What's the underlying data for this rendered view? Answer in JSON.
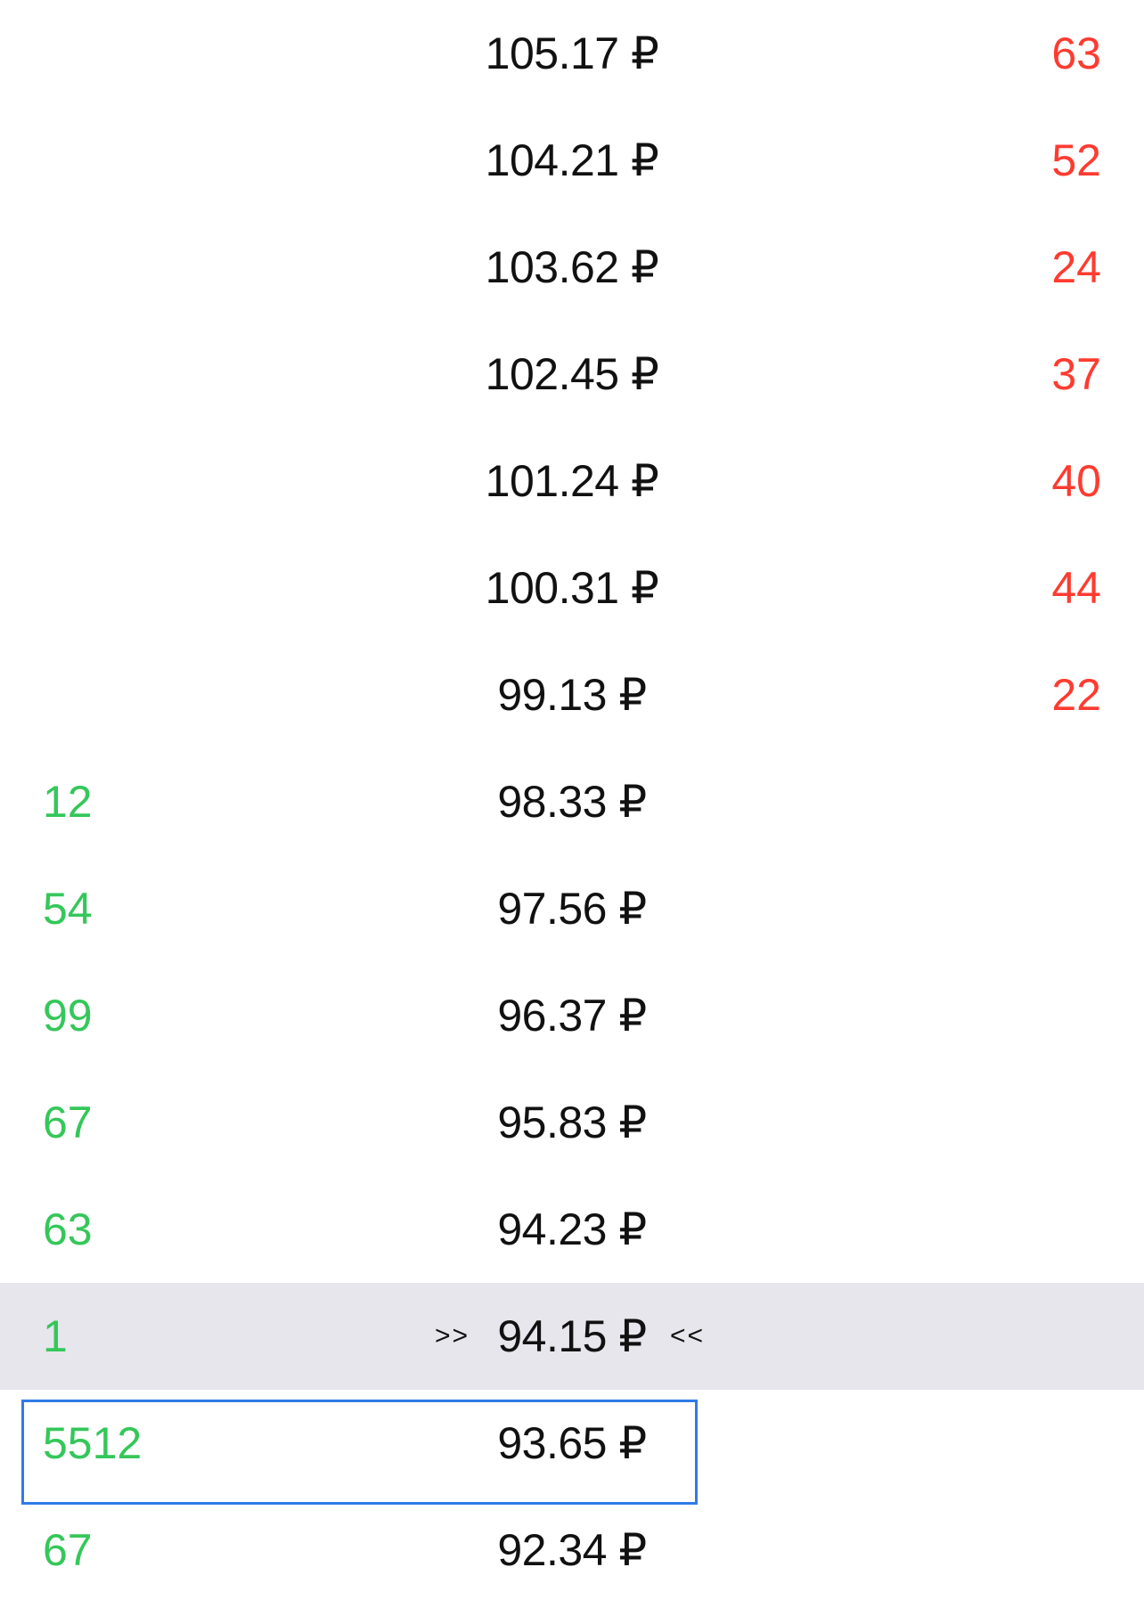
{
  "orderbook": {
    "rows": [
      {
        "bid": "",
        "price": "105.17 ₽",
        "ask": "63"
      },
      {
        "bid": "",
        "price": "104.21 ₽",
        "ask": "52"
      },
      {
        "bid": "",
        "price": "103.62 ₽",
        "ask": "24"
      },
      {
        "bid": "",
        "price": "102.45 ₽",
        "ask": "37"
      },
      {
        "bid": "",
        "price": "101.24 ₽",
        "ask": "40"
      },
      {
        "bid": "",
        "price": "100.31 ₽",
        "ask": "44"
      },
      {
        "bid": "",
        "price": "99.13 ₽",
        "ask": "22"
      },
      {
        "bid": "12",
        "price": "98.33 ₽",
        "ask": ""
      },
      {
        "bid": "54",
        "price": "97.56 ₽",
        "ask": ""
      },
      {
        "bid": "99",
        "price": "96.37 ₽",
        "ask": ""
      },
      {
        "bid": "67",
        "price": "95.83 ₽",
        "ask": ""
      },
      {
        "bid": "63",
        "price": "94.23 ₽",
        "ask": ""
      },
      {
        "bid": "1",
        "price": "94.15 ₽",
        "ask": ""
      },
      {
        "bid": "5512",
        "price": "93.65 ₽",
        "ask": ""
      },
      {
        "bid": "67",
        "price": "92.34 ₽",
        "ask": ""
      }
    ],
    "current_marker_left": ">>",
    "current_marker_right": "<<",
    "colors": {
      "bid": "#34c759",
      "ask": "#ff3b30",
      "price": "#111111",
      "current_row_bg": "#e6e6ec",
      "selection_border": "#2f7be6"
    }
  }
}
